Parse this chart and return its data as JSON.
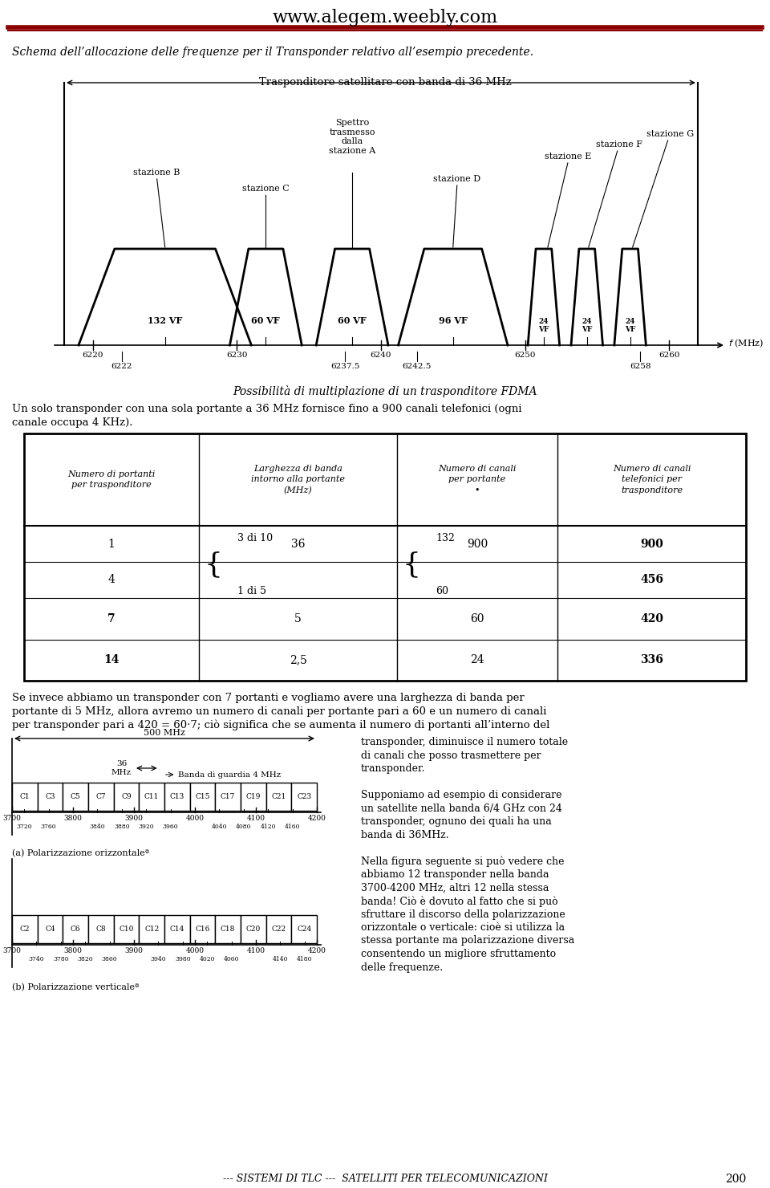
{
  "header_url": "www.alegem.weebly.com",
  "header_line_color_thick": "#8B0000",
  "header_line_color_thin": "#8B0000",
  "bg_color": "#ffffff",
  "italic_caption": "Schema dell’allocazione delle frequenze per il Transponder relativo all’esempio precedente.",
  "transponder_title": "Trasponditore satellitare con banda di 36 MHz",
  "fdma_title": "Possibilità di multiplazione di un trasponditore FDMA",
  "fdma_text_line1": "Un solo transponder con una sola portante a 36 MHz fornisce fino a 900 canali telefonici (ogni",
  "fdma_text_line2": "canale occupa 4 KHz).",
  "table_header_1": "Numero di portanti\nper trasponditore",
  "table_header_2": "Larghezza di banda\nintorno alla portante\n(MHz)",
  "table_header_3": "Numero di canali\nper portante\n•",
  "table_header_4": "Numero di canali\ntelefonici per\ntrasponditore",
  "para_line1": "Se invece abbiamo un transponder con 7 portanti e vogliamo avere una larghezza di banda per",
  "para_line2": "portante di 5 MHz, allora avremo un numero di canali per portante pari a 60 e un numero di canali",
  "para_line3": "per transponder pari a 420 = 60·7; ciò significa che se aumenta il numero di portanti all’interno del",
  "right_para1_line1": "transponder, diminuisce il numero totale",
  "right_para1_line2": "di canali che posso trasmettere per",
  "right_para1_line3": "transponder.",
  "right_para2_line1": "Supponiamo ad esempio di considerare",
  "right_para2_line2": "un satellite nella banda 6/4 GHz con 24",
  "right_para2_line3": "transponder, ognuno dei quali ha una",
  "right_para2_line4": "banda di 36MHz.",
  "right_para3_line1": "Nella figura seguente si può vedere che",
  "right_para3_line2": "abbiamo 12 transponder nella banda",
  "right_para3_line3": "3700-4200 MHz, altri 12 nella stessa",
  "right_para3_line4": "banda! Ciò è dovuto al fatto che si può",
  "right_para3_line5": "sfruttare il discorso della polarizzazione",
  "right_para3_line6": "orizzontale o verticale: cioè si utilizza la",
  "right_para3_line7": "stessa portante ma polarizzazione diversa",
  "right_para3_line8": "consentendo un migliore sfruttamento",
  "right_para3_line9": "delle frequenze.",
  "channels_top": [
    "C1",
    "C3",
    "C5",
    "C7",
    "C9",
    "C11",
    "C13",
    "C15",
    "C17",
    "C19",
    "C21",
    "C23"
  ],
  "channels_bottom": [
    "C2",
    "C4",
    "C6",
    "C8",
    "C10",
    "C12",
    "C14",
    "C16",
    "C18",
    "C20",
    "C22",
    "C24"
  ],
  "label_pol_top": "(a) Polarizzazione orizzontaleª",
  "label_pol_bot": "(b) Polarizzazione verticaleª",
  "footer_text": "--- SISTEMI DI TLC ---  SATELLITI PER TELECOMUNICAZIONI",
  "footer_page": "200",
  "diagram_500mhz": "500 MHz",
  "diagram_36mhz": "36\nMHz",
  "diagram_banda": "← Banda di guardia 4 MHz"
}
